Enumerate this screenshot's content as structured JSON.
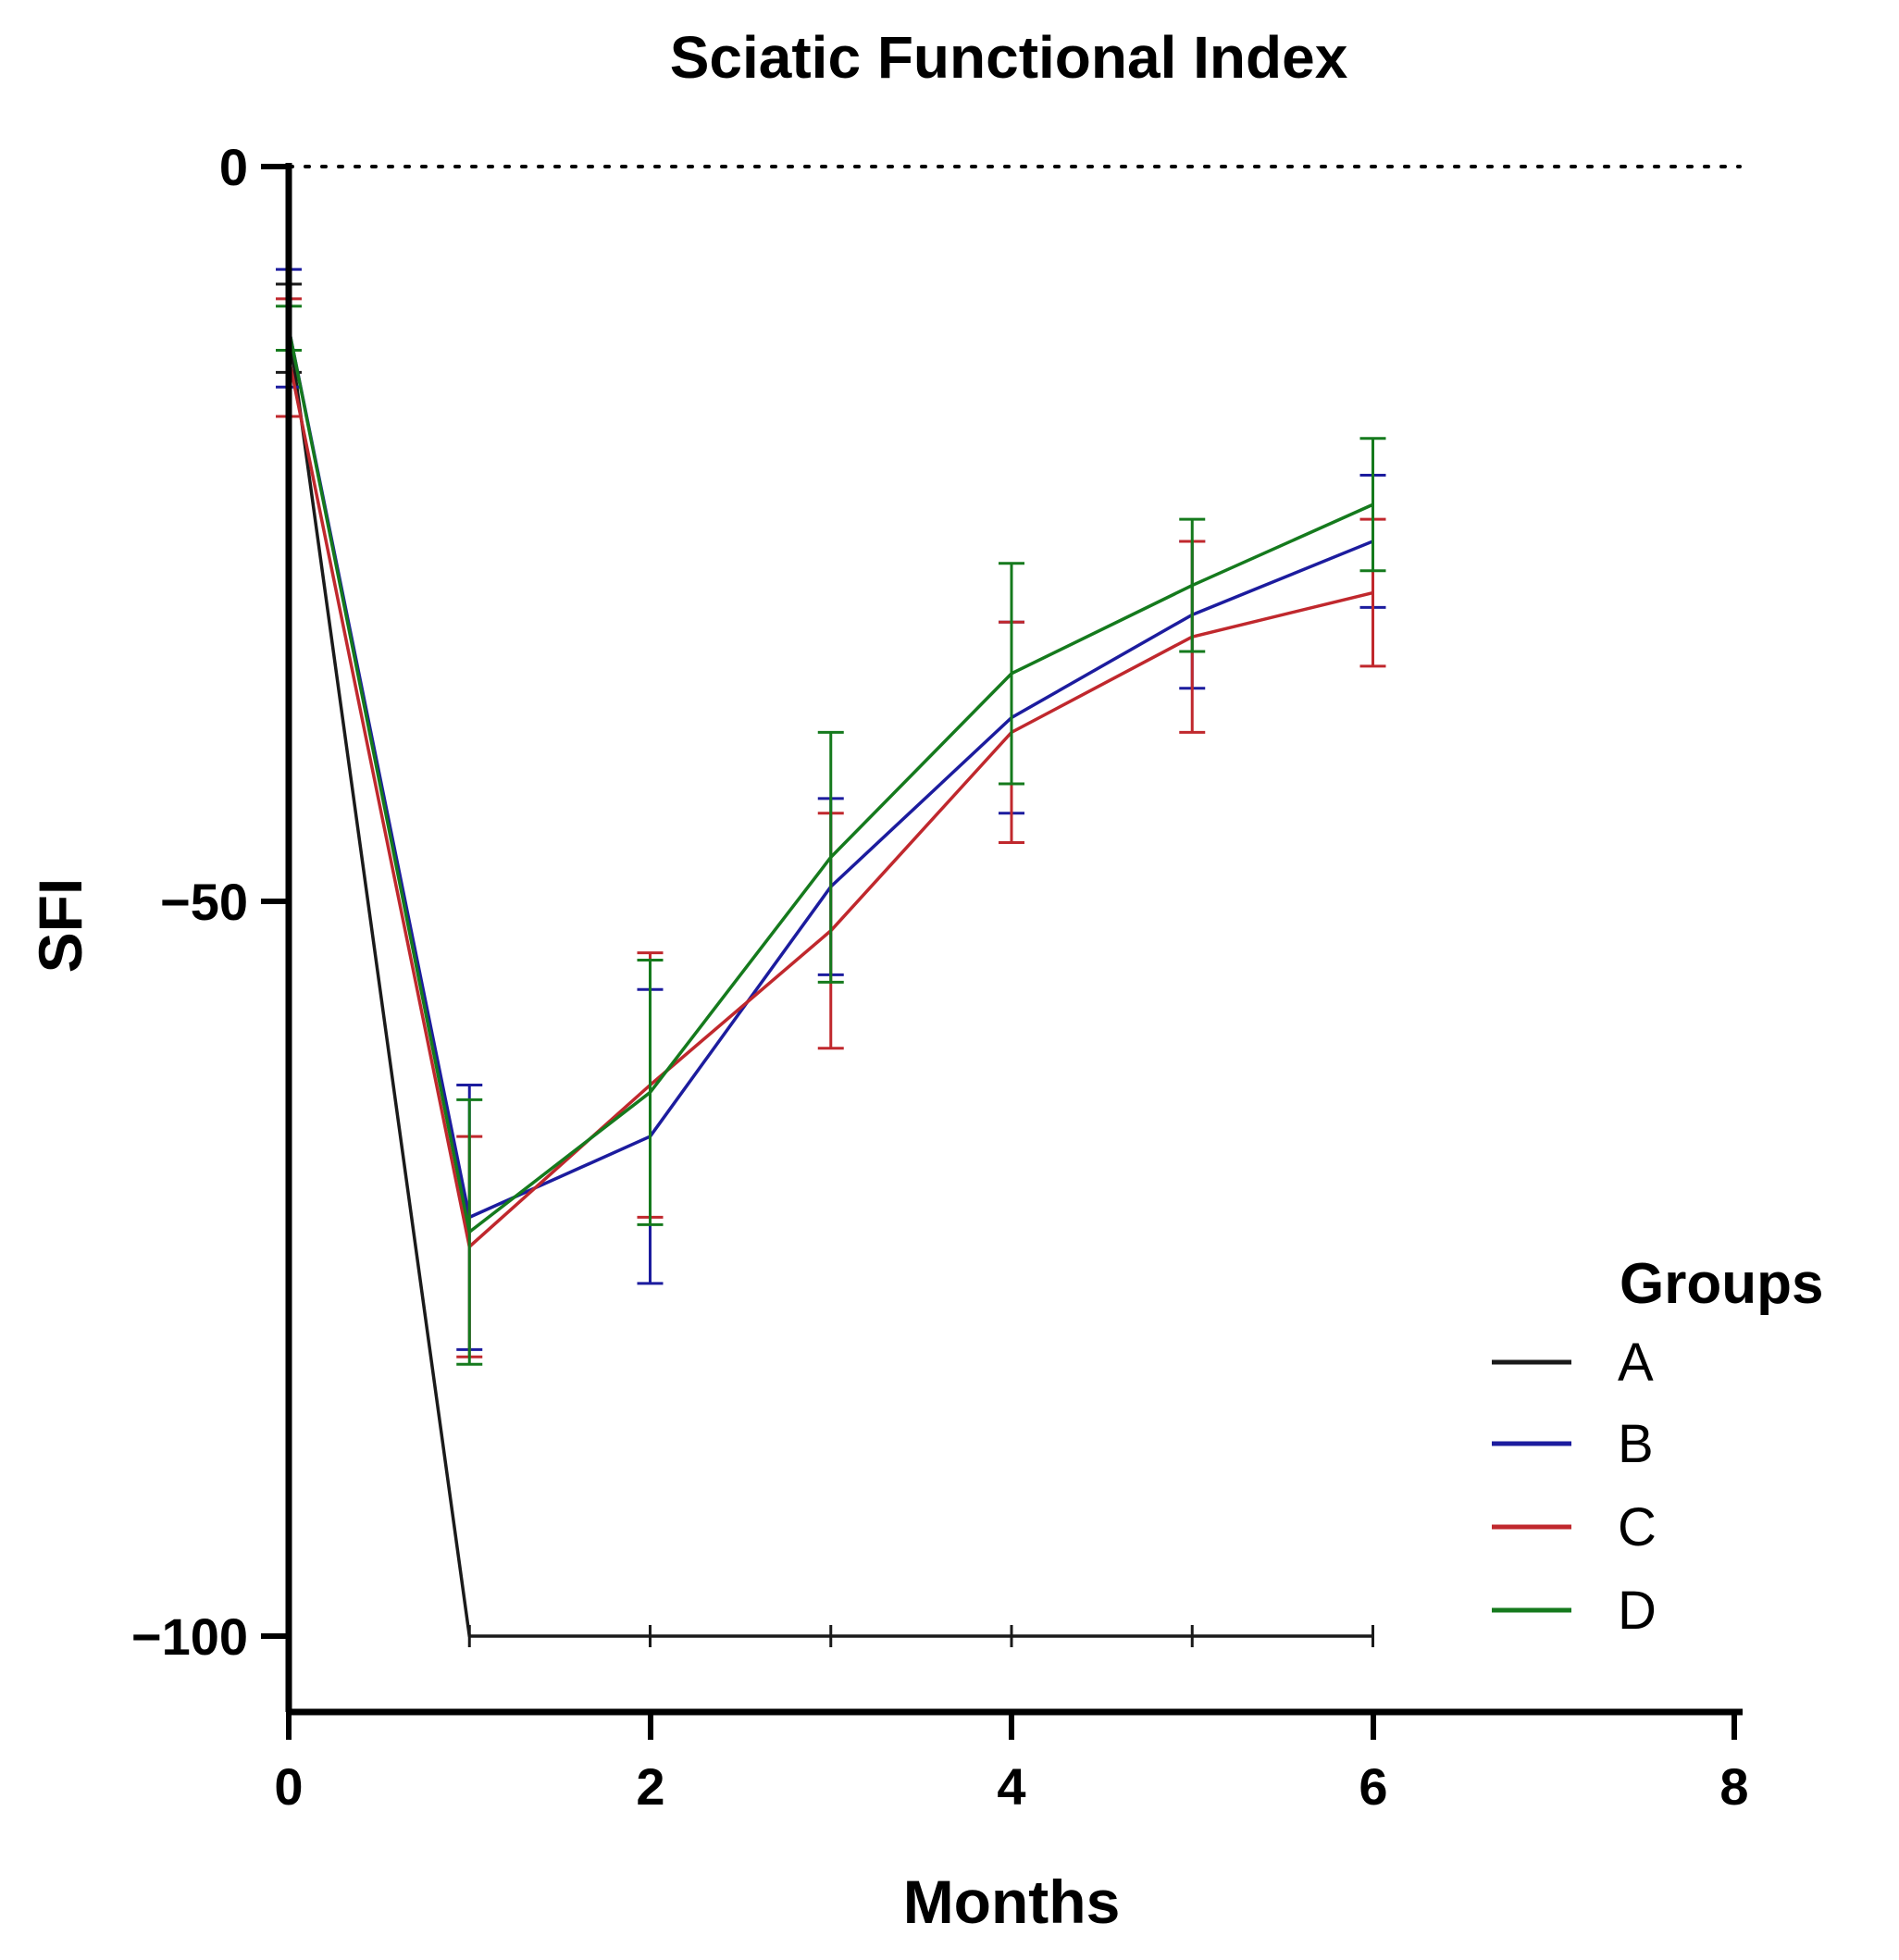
{
  "chart_data": {
    "type": "line",
    "title": "Sciatic Functional Index",
    "xlabel": "Months",
    "ylabel": "SFI",
    "xlim": [
      0,
      8
    ],
    "ylim": [
      -105,
      0
    ],
    "x_ticks": [
      "0",
      "2",
      "4",
      "6",
      "8"
    ],
    "y_ticks": [
      "0",
      "−50",
      "−100"
    ],
    "reference_line": {
      "y": 0,
      "style": "dotted"
    },
    "legend": {
      "title": "Groups",
      "position": "bottom-right"
    },
    "x": [
      0,
      1,
      2,
      3,
      4,
      5,
      6
    ],
    "series": [
      {
        "name": "A",
        "color": "#1a1a1a",
        "values": [
          -11,
          -100,
          -100,
          -100,
          -100,
          -100,
          -100
        ],
        "errors": [
          3,
          0,
          0,
          0,
          0,
          0,
          0
        ]
      },
      {
        "name": "B",
        "color": "#1c1c9e",
        "values": [
          -11,
          -71.5,
          -66,
          -49,
          -37.5,
          -30.5,
          -25.5
        ],
        "errors": [
          4,
          9,
          10,
          6,
          6.5,
          5,
          4.5
        ]
      },
      {
        "name": "C",
        "color": "#c0282d",
        "values": [
          -13,
          -73.5,
          -62.5,
          -52,
          -38.5,
          -32,
          -29
        ],
        "errors": [
          4,
          7.5,
          9,
          8,
          7.5,
          6.5,
          5
        ]
      },
      {
        "name": "D",
        "color": "#157a1d",
        "values": [
          -11,
          -72.5,
          -63,
          -47,
          -34.5,
          -28.5,
          -23
        ],
        "errors": [
          1.5,
          9,
          9,
          8.5,
          7.5,
          4.5,
          4.5
        ]
      }
    ]
  }
}
